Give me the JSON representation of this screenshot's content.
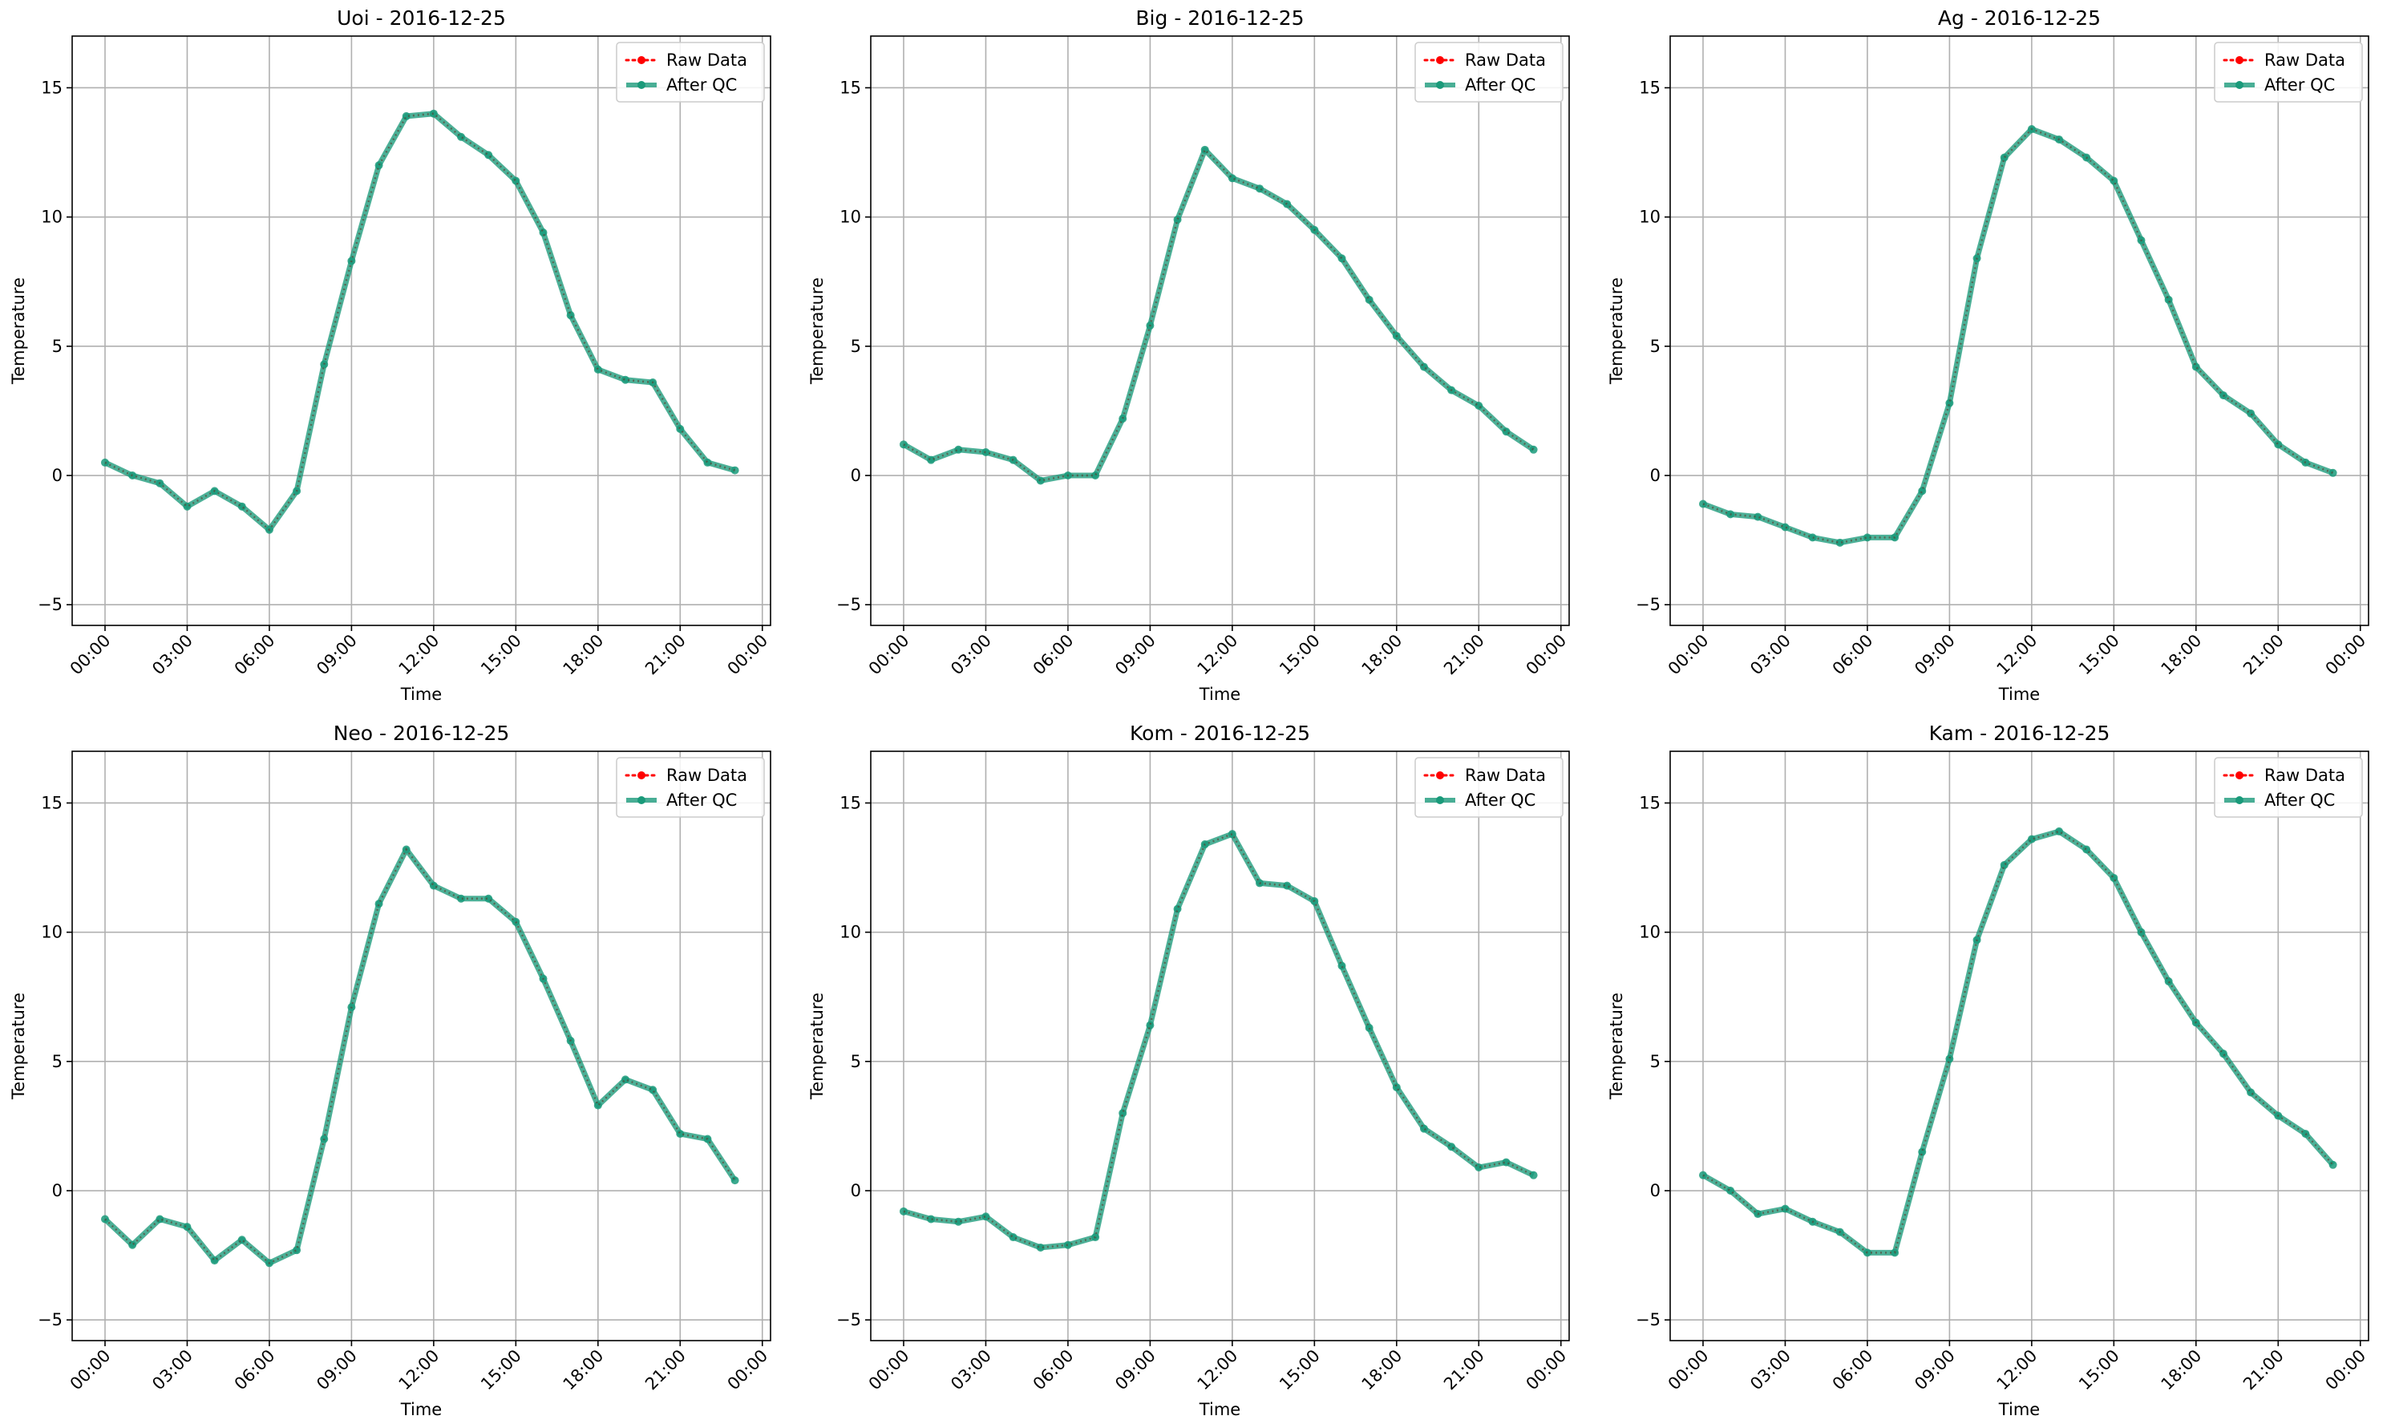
{
  "chart_data": [
    {
      "type": "line",
      "title": "Uoi - 2016-12-25",
      "xlabel": "Time",
      "ylabel": "Temperature",
      "x_ticks": [
        "00:00",
        "03:00",
        "06:00",
        "09:00",
        "12:00",
        "15:00",
        "18:00",
        "21:00",
        "00:00"
      ],
      "y_ticks": [
        "−5",
        "0",
        "5",
        "10",
        "15"
      ],
      "ylim": [
        -5.8,
        17
      ],
      "xlim_hours": [
        -1.2,
        24.3
      ],
      "grid": true,
      "legend_position": "upper-right",
      "x": [
        "00:00",
        "01:00",
        "02:00",
        "03:00",
        "04:00",
        "05:00",
        "06:00",
        "07:00",
        "08:00",
        "09:00",
        "10:00",
        "11:00",
        "12:00",
        "13:00",
        "14:00",
        "15:00",
        "16:00",
        "17:00",
        "18:00",
        "19:00",
        "20:00",
        "21:00",
        "22:00",
        "23:00"
      ],
      "series": [
        {
          "name": "Raw Data",
          "style": "dotted",
          "color": "#ff0000",
          "values": [
            0.5,
            0.0,
            -0.3,
            -1.2,
            -0.6,
            -1.2,
            -2.1,
            -0.6,
            4.3,
            8.3,
            12.0,
            13.9,
            14.0,
            13.1,
            12.4,
            11.4,
            9.4,
            6.2,
            4.1,
            3.7,
            3.6,
            1.8,
            0.5,
            0.2
          ]
        },
        {
          "name": "After QC",
          "style": "solid",
          "color": "#1a9a7a",
          "values": [
            0.5,
            0.0,
            -0.3,
            -1.2,
            -0.6,
            -1.2,
            -2.1,
            -0.6,
            4.3,
            8.3,
            12.0,
            13.9,
            14.0,
            13.1,
            12.4,
            11.4,
            9.4,
            6.2,
            4.1,
            3.7,
            3.6,
            1.8,
            0.5,
            0.2
          ]
        }
      ]
    },
    {
      "type": "line",
      "title": "Big - 2016-12-25",
      "xlabel": "Time",
      "ylabel": "Temperature",
      "x_ticks": [
        "00:00",
        "03:00",
        "06:00",
        "09:00",
        "12:00",
        "15:00",
        "18:00",
        "21:00",
        "00:00"
      ],
      "y_ticks": [
        "−5",
        "0",
        "5",
        "10",
        "15"
      ],
      "ylim": [
        -5.8,
        17
      ],
      "xlim_hours": [
        -1.2,
        24.3
      ],
      "grid": true,
      "legend_position": "upper-right",
      "x": [
        "00:00",
        "01:00",
        "02:00",
        "03:00",
        "04:00",
        "05:00",
        "06:00",
        "07:00",
        "08:00",
        "09:00",
        "10:00",
        "11:00",
        "12:00",
        "13:00",
        "14:00",
        "15:00",
        "16:00",
        "17:00",
        "18:00",
        "19:00",
        "20:00",
        "21:00",
        "22:00",
        "23:00"
      ],
      "series": [
        {
          "name": "Raw Data",
          "style": "dotted",
          "color": "#ff0000",
          "values": [
            1.2,
            0.6,
            1.0,
            0.9,
            0.6,
            -0.2,
            0.0,
            0.0,
            2.2,
            5.8,
            9.9,
            12.6,
            11.5,
            11.1,
            10.5,
            9.5,
            8.4,
            6.8,
            5.4,
            4.2,
            3.3,
            2.7,
            1.7,
            1.0
          ]
        },
        {
          "name": "After QC",
          "style": "solid",
          "color": "#1a9a7a",
          "values": [
            1.2,
            0.6,
            1.0,
            0.9,
            0.6,
            -0.2,
            0.0,
            0.0,
            2.2,
            5.8,
            9.9,
            12.6,
            11.5,
            11.1,
            10.5,
            9.5,
            8.4,
            6.8,
            5.4,
            4.2,
            3.3,
            2.7,
            1.7,
            1.0
          ]
        }
      ]
    },
    {
      "type": "line",
      "title": "Ag - 2016-12-25",
      "xlabel": "Time",
      "ylabel": "Temperature",
      "x_ticks": [
        "00:00",
        "03:00",
        "06:00",
        "09:00",
        "12:00",
        "15:00",
        "18:00",
        "21:00",
        "00:00"
      ],
      "y_ticks": [
        "−5",
        "0",
        "5",
        "10",
        "15"
      ],
      "ylim": [
        -5.8,
        17
      ],
      "xlim_hours": [
        -1.2,
        24.3
      ],
      "grid": true,
      "legend_position": "upper-right",
      "x": [
        "00:00",
        "01:00",
        "02:00",
        "03:00",
        "04:00",
        "05:00",
        "06:00",
        "07:00",
        "08:00",
        "09:00",
        "10:00",
        "11:00",
        "12:00",
        "13:00",
        "14:00",
        "15:00",
        "16:00",
        "17:00",
        "18:00",
        "19:00",
        "20:00",
        "21:00",
        "22:00",
        "23:00"
      ],
      "series": [
        {
          "name": "Raw Data",
          "style": "dotted",
          "color": "#ff0000",
          "values": [
            -1.1,
            -1.5,
            -1.6,
            -2.0,
            -2.4,
            -2.6,
            -2.4,
            -2.4,
            -0.6,
            2.8,
            8.4,
            12.3,
            13.4,
            13.0,
            12.3,
            11.4,
            9.1,
            6.8,
            4.2,
            3.1,
            2.4,
            1.2,
            0.5,
            0.1
          ]
        },
        {
          "name": "After QC",
          "style": "solid",
          "color": "#1a9a7a",
          "values": [
            -1.1,
            -1.5,
            -1.6,
            -2.0,
            -2.4,
            -2.6,
            -2.4,
            -2.4,
            -0.6,
            2.8,
            8.4,
            12.3,
            13.4,
            13.0,
            12.3,
            11.4,
            9.1,
            6.8,
            4.2,
            3.1,
            2.4,
            1.2,
            0.5,
            0.1
          ]
        }
      ]
    },
    {
      "type": "line",
      "title": "Neo - 2016-12-25",
      "xlabel": "Time",
      "ylabel": "Temperature",
      "x_ticks": [
        "00:00",
        "03:00",
        "06:00",
        "09:00",
        "12:00",
        "15:00",
        "18:00",
        "21:00",
        "00:00"
      ],
      "y_ticks": [
        "−5",
        "0",
        "5",
        "10",
        "15"
      ],
      "ylim": [
        -5.8,
        17
      ],
      "xlim_hours": [
        -1.2,
        24.3
      ],
      "grid": true,
      "legend_position": "upper-right",
      "x": [
        "00:00",
        "01:00",
        "02:00",
        "03:00",
        "04:00",
        "05:00",
        "06:00",
        "07:00",
        "08:00",
        "09:00",
        "10:00",
        "11:00",
        "12:00",
        "13:00",
        "14:00",
        "15:00",
        "16:00",
        "17:00",
        "18:00",
        "19:00",
        "20:00",
        "21:00",
        "22:00",
        "23:00"
      ],
      "series": [
        {
          "name": "Raw Data",
          "style": "dotted",
          "color": "#ff0000",
          "values": [
            -1.1,
            -2.1,
            -1.1,
            -1.4,
            -2.7,
            -1.9,
            -2.8,
            -2.3,
            2.0,
            7.1,
            11.1,
            13.2,
            11.8,
            11.3,
            11.3,
            10.4,
            8.2,
            5.8,
            3.3,
            4.3,
            3.9,
            2.2,
            2.0,
            0.4
          ]
        },
        {
          "name": "After QC",
          "style": "solid",
          "color": "#1a9a7a",
          "values": [
            -1.1,
            -2.1,
            -1.1,
            -1.4,
            -2.7,
            -1.9,
            -2.8,
            -2.3,
            2.0,
            7.1,
            11.1,
            13.2,
            11.8,
            11.3,
            11.3,
            10.4,
            8.2,
            5.8,
            3.3,
            4.3,
            3.9,
            2.2,
            2.0,
            0.4
          ]
        }
      ]
    },
    {
      "type": "line",
      "title": "Kom - 2016-12-25",
      "xlabel": "Time",
      "ylabel": "Temperature",
      "x_ticks": [
        "00:00",
        "03:00",
        "06:00",
        "09:00",
        "12:00",
        "15:00",
        "18:00",
        "21:00",
        "00:00"
      ],
      "y_ticks": [
        "−5",
        "0",
        "5",
        "10",
        "15"
      ],
      "ylim": [
        -5.8,
        17
      ],
      "xlim_hours": [
        -1.2,
        24.3
      ],
      "grid": true,
      "legend_position": "upper-right",
      "x": [
        "00:00",
        "01:00",
        "02:00",
        "03:00",
        "04:00",
        "05:00",
        "06:00",
        "07:00",
        "08:00",
        "09:00",
        "10:00",
        "11:00",
        "12:00",
        "13:00",
        "14:00",
        "15:00",
        "16:00",
        "17:00",
        "18:00",
        "19:00",
        "20:00",
        "21:00",
        "22:00",
        "23:00"
      ],
      "series": [
        {
          "name": "Raw Data",
          "style": "dotted",
          "color": "#ff0000",
          "values": [
            -0.8,
            -1.1,
            -1.2,
            -1.0,
            -1.8,
            -2.2,
            -2.1,
            -1.8,
            3.0,
            6.4,
            10.9,
            13.4,
            13.8,
            11.9,
            11.8,
            11.2,
            8.7,
            6.3,
            4.0,
            2.4,
            1.7,
            0.9,
            1.1,
            0.6
          ]
        },
        {
          "name": "After QC",
          "style": "solid",
          "color": "#1a9a7a",
          "values": [
            -0.8,
            -1.1,
            -1.2,
            -1.0,
            -1.8,
            -2.2,
            -2.1,
            -1.8,
            3.0,
            6.4,
            10.9,
            13.4,
            13.8,
            11.9,
            11.8,
            11.2,
            8.7,
            6.3,
            4.0,
            2.4,
            1.7,
            0.9,
            1.1,
            0.6
          ]
        }
      ]
    },
    {
      "type": "line",
      "title": "Kam - 2016-12-25",
      "xlabel": "Time",
      "ylabel": "Temperature",
      "x_ticks": [
        "00:00",
        "03:00",
        "06:00",
        "09:00",
        "12:00",
        "15:00",
        "18:00",
        "21:00",
        "00:00"
      ],
      "y_ticks": [
        "−5",
        "0",
        "5",
        "10",
        "15"
      ],
      "ylim": [
        -5.8,
        17
      ],
      "xlim_hours": [
        -1.2,
        24.3
      ],
      "grid": true,
      "legend_position": "upper-right",
      "x": [
        "00:00",
        "01:00",
        "02:00",
        "03:00",
        "04:00",
        "05:00",
        "06:00",
        "07:00",
        "08:00",
        "09:00",
        "10:00",
        "11:00",
        "12:00",
        "13:00",
        "14:00",
        "15:00",
        "16:00",
        "17:00",
        "18:00",
        "19:00",
        "20:00",
        "21:00",
        "22:00",
        "23:00"
      ],
      "series": [
        {
          "name": "Raw Data",
          "style": "dotted",
          "color": "#ff0000",
          "values": [
            0.6,
            0.0,
            -0.9,
            -0.7,
            -1.2,
            -1.6,
            -2.4,
            -2.4,
            1.5,
            5.1,
            9.7,
            12.6,
            13.6,
            13.9,
            13.2,
            12.1,
            10.0,
            8.1,
            6.5,
            5.3,
            3.8,
            2.9,
            2.2,
            1.0
          ]
        },
        {
          "name": "After QC",
          "style": "solid",
          "color": "#1a9a7a",
          "values": [
            0.6,
            0.0,
            -0.9,
            -0.7,
            -1.2,
            -1.6,
            -2.4,
            -2.4,
            1.5,
            5.1,
            9.7,
            12.6,
            13.6,
            13.9,
            13.2,
            12.1,
            10.0,
            8.1,
            6.5,
            5.3,
            3.8,
            2.9,
            2.2,
            1.0
          ]
        }
      ]
    }
  ]
}
